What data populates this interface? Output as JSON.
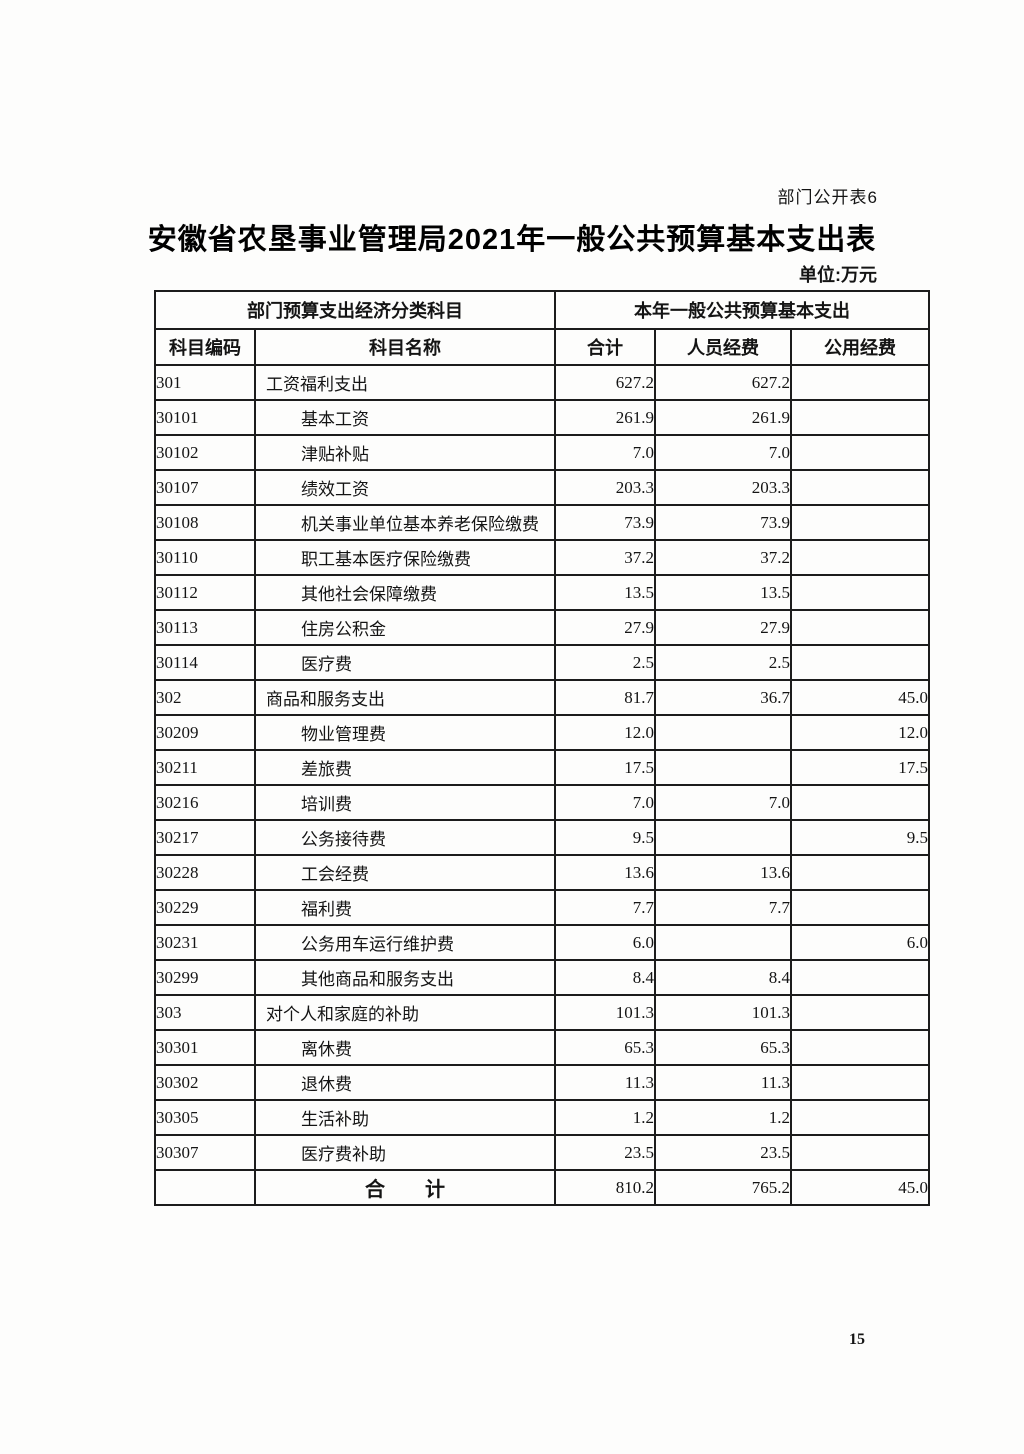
{
  "page": {
    "header_note": "部门公开表6",
    "title": "安徽省农垦事业管理局2021年一般公共预算基本支出表",
    "unit_label": "单位:万元",
    "page_number": "15"
  },
  "table": {
    "group_headers": [
      {
        "label": "部门预算支出经济分类科目"
      },
      {
        "label": "本年一般公共预算基本支出"
      }
    ],
    "columns": [
      "科目编码",
      "科目名称",
      "合计",
      "人员经费",
      "公用经费"
    ],
    "rows": [
      {
        "code": "301",
        "name": "工资福利支出",
        "level": 1,
        "total": "627.2",
        "personnel": "627.2",
        "public": ""
      },
      {
        "code": "30101",
        "name": "基本工资",
        "level": 2,
        "total": "261.9",
        "personnel": "261.9",
        "public": ""
      },
      {
        "code": "30102",
        "name": "津贴补贴",
        "level": 2,
        "total": "7.0",
        "personnel": "7.0",
        "public": ""
      },
      {
        "code": "30107",
        "name": "绩效工资",
        "level": 2,
        "total": "203.3",
        "personnel": "203.3",
        "public": ""
      },
      {
        "code": "30108",
        "name": "机关事业单位基本养老保险缴费",
        "level": 2,
        "total": "73.9",
        "personnel": "73.9",
        "public": ""
      },
      {
        "code": "30110",
        "name": "职工基本医疗保险缴费",
        "level": 2,
        "total": "37.2",
        "personnel": "37.2",
        "public": ""
      },
      {
        "code": "30112",
        "name": "其他社会保障缴费",
        "level": 2,
        "total": "13.5",
        "personnel": "13.5",
        "public": ""
      },
      {
        "code": "30113",
        "name": "住房公积金",
        "level": 2,
        "total": "27.9",
        "personnel": "27.9",
        "public": ""
      },
      {
        "code": "30114",
        "name": "医疗费",
        "level": 2,
        "total": "2.5",
        "personnel": "2.5",
        "public": ""
      },
      {
        "code": "302",
        "name": "商品和服务支出",
        "level": 1,
        "total": "81.7",
        "personnel": "36.7",
        "public": "45.0"
      },
      {
        "code": "30209",
        "name": "物业管理费",
        "level": 2,
        "total": "12.0",
        "personnel": "",
        "public": "12.0"
      },
      {
        "code": "30211",
        "name": "差旅费",
        "level": 2,
        "total": "17.5",
        "personnel": "",
        "public": "17.5"
      },
      {
        "code": "30216",
        "name": "培训费",
        "level": 2,
        "total": "7.0",
        "personnel": "7.0",
        "public": ""
      },
      {
        "code": "30217",
        "name": "公务接待费",
        "level": 2,
        "total": "9.5",
        "personnel": "",
        "public": "9.5"
      },
      {
        "code": "30228",
        "name": "工会经费",
        "level": 2,
        "total": "13.6",
        "personnel": "13.6",
        "public": ""
      },
      {
        "code": "30229",
        "name": "福利费",
        "level": 2,
        "total": "7.7",
        "personnel": "7.7",
        "public": ""
      },
      {
        "code": "30231",
        "name": "公务用车运行维护费",
        "level": 2,
        "total": "6.0",
        "personnel": "",
        "public": "6.0"
      },
      {
        "code": "30299",
        "name": "其他商品和服务支出",
        "level": 2,
        "total": "8.4",
        "personnel": "8.4",
        "public": ""
      },
      {
        "code": "303",
        "name": "对个人和家庭的补助",
        "level": 1,
        "total": "101.3",
        "personnel": "101.3",
        "public": ""
      },
      {
        "code": "30301",
        "name": "离休费",
        "level": 2,
        "total": "65.3",
        "personnel": "65.3",
        "public": ""
      },
      {
        "code": "30302",
        "name": "退休费",
        "level": 2,
        "total": "11.3",
        "personnel": "11.3",
        "public": ""
      },
      {
        "code": "30305",
        "name": "生活补助",
        "level": 2,
        "total": "1.2",
        "personnel": "1.2",
        "public": ""
      },
      {
        "code": "30307",
        "name": "医疗费补助",
        "level": 2,
        "total": "23.5",
        "personnel": "23.5",
        "public": ""
      }
    ],
    "total_row": {
      "code": "",
      "name": "合　　计",
      "total": "810.2",
      "personnel": "765.2",
      "public": "45.0"
    }
  }
}
